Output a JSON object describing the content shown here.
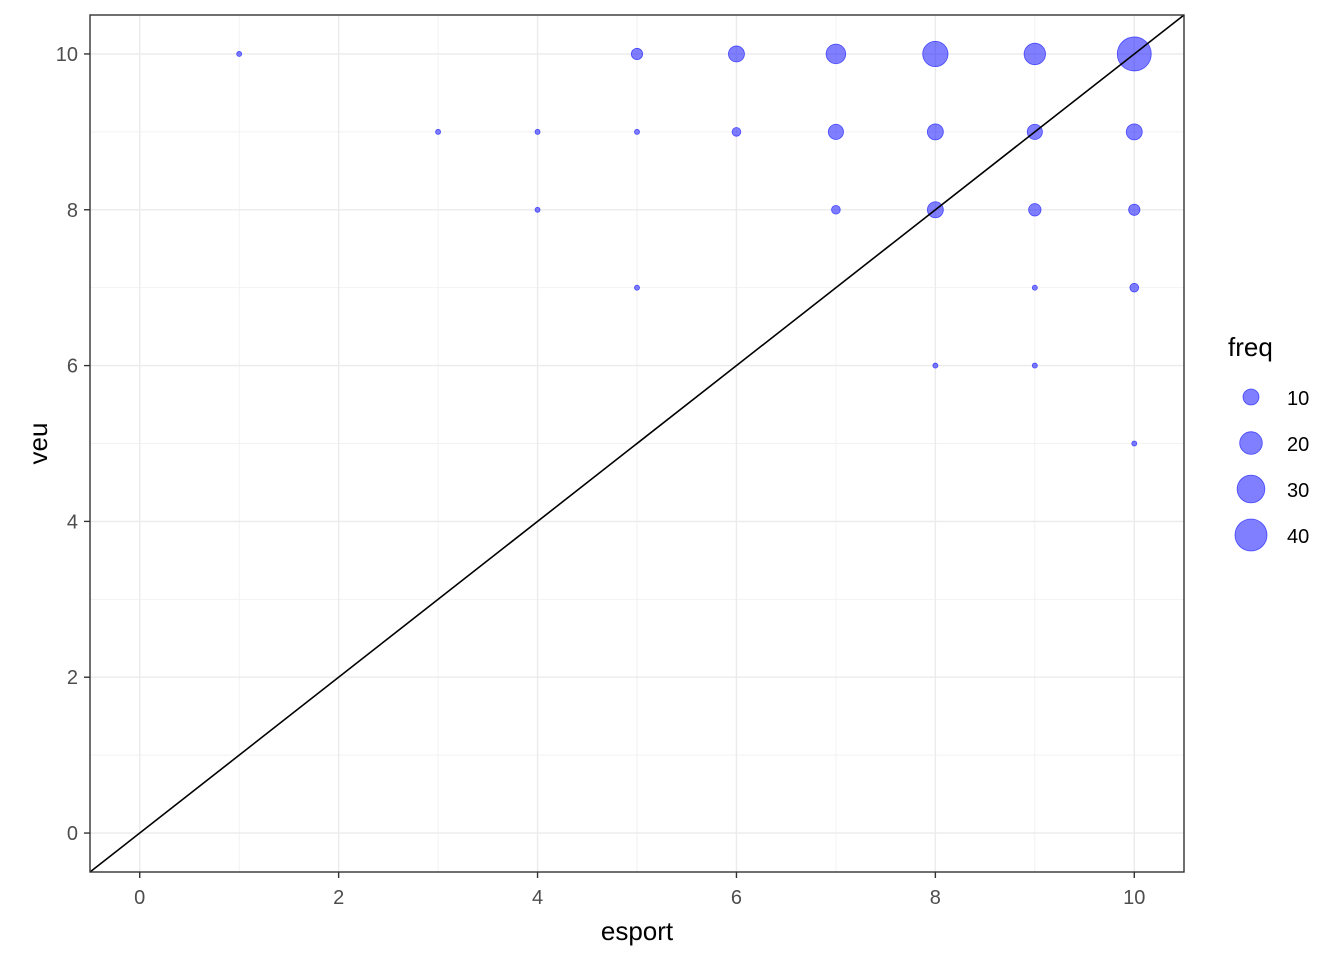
{
  "chart_data": {
    "type": "scatter",
    "title": "",
    "xlabel": "esport",
    "ylabel": "veu",
    "xlim": [
      -0.5,
      10.5
    ],
    "ylim": [
      -0.5,
      10.5
    ],
    "x_ticks": [
      0,
      2,
      4,
      6,
      8,
      10
    ],
    "y_ticks": [
      0,
      2,
      4,
      6,
      8,
      10
    ],
    "x_tick_labels": [
      "0",
      "2",
      "4",
      "6",
      "8",
      "10"
    ],
    "y_tick_labels": [
      "0",
      "2",
      "4",
      "6",
      "8",
      "10"
    ],
    "grid": true,
    "point_color": "#0000ff",
    "point_opacity": 0.5,
    "reference_line": {
      "slope": 1,
      "intercept": 0,
      "color": "#000000"
    },
    "legend": {
      "title": "freq",
      "position": "right",
      "entries": [
        {
          "label": "10",
          "value": 10
        },
        {
          "label": "20",
          "value": 20
        },
        {
          "label": "30",
          "value": 30
        },
        {
          "label": "40",
          "value": 40
        }
      ]
    },
    "size_field": "freq",
    "points": [
      {
        "x": 1,
        "y": 10,
        "freq": 1
      },
      {
        "x": 5,
        "y": 10,
        "freq": 5
      },
      {
        "x": 6,
        "y": 10,
        "freq": 10
      },
      {
        "x": 7,
        "y": 10,
        "freq": 15
      },
      {
        "x": 8,
        "y": 10,
        "freq": 25
      },
      {
        "x": 9,
        "y": 10,
        "freq": 18
      },
      {
        "x": 10,
        "y": 10,
        "freq": 45
      },
      {
        "x": 3,
        "y": 9,
        "freq": 1
      },
      {
        "x": 4,
        "y": 9,
        "freq": 1
      },
      {
        "x": 5,
        "y": 9,
        "freq": 1
      },
      {
        "x": 6,
        "y": 9,
        "freq": 3
      },
      {
        "x": 7,
        "y": 9,
        "freq": 9
      },
      {
        "x": 8,
        "y": 9,
        "freq": 10
      },
      {
        "x": 9,
        "y": 9,
        "freq": 9
      },
      {
        "x": 10,
        "y": 9,
        "freq": 10
      },
      {
        "x": 4,
        "y": 8,
        "freq": 1
      },
      {
        "x": 7,
        "y": 8,
        "freq": 3
      },
      {
        "x": 8,
        "y": 8,
        "freq": 10
      },
      {
        "x": 9,
        "y": 8,
        "freq": 6
      },
      {
        "x": 10,
        "y": 8,
        "freq": 5
      },
      {
        "x": 5,
        "y": 7,
        "freq": 1
      },
      {
        "x": 9,
        "y": 7,
        "freq": 1
      },
      {
        "x": 10,
        "y": 7,
        "freq": 3
      },
      {
        "x": 8,
        "y": 6,
        "freq": 1
      },
      {
        "x": 9,
        "y": 6,
        "freq": 1
      },
      {
        "x": 10,
        "y": 5,
        "freq": 1
      }
    ]
  }
}
